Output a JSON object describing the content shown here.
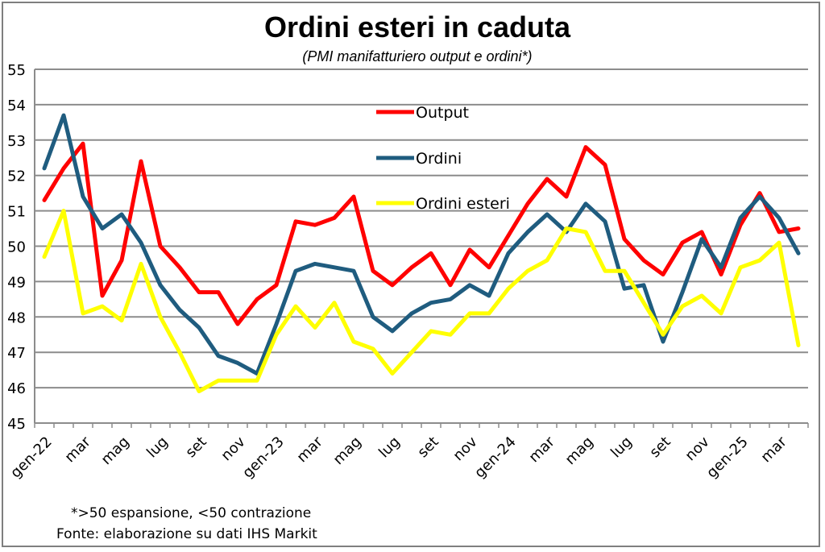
{
  "chart_data": {
    "type": "line",
    "title": "Ordini esteri in caduta",
    "subtitle": "(PMI manifatturiero output e ordini*)",
    "ylim": [
      45,
      55
    ],
    "yticks": [
      45,
      46,
      47,
      48,
      49,
      50,
      51,
      52,
      53,
      54,
      55
    ],
    "grid": true,
    "legend_position": "top-center",
    "x": [
      "gen-22",
      "feb-22",
      "mar",
      "apr-22",
      "mag",
      "giu-22",
      "lug",
      "ago-22",
      "set",
      "ott-22",
      "nov",
      "dic-22",
      "gen-23",
      "feb-23",
      "mar",
      "apr-23",
      "mag",
      "giu-23",
      "lug",
      "ago-23",
      "set",
      "ott-23",
      "nov",
      "dic-23",
      "gen-24",
      "feb-24",
      "mar",
      "apr-24",
      "mag",
      "giu-24",
      "lug",
      "ago-24",
      "set",
      "ott-24",
      "nov",
      "dic-24",
      "gen-25",
      "feb-25",
      "mar",
      "apr-25"
    ],
    "xtick_labels": [
      {
        "index": 0,
        "label": "gen-22"
      },
      {
        "index": 2,
        "label": "mar"
      },
      {
        "index": 4,
        "label": "mag"
      },
      {
        "index": 6,
        "label": "lug"
      },
      {
        "index": 8,
        "label": "set"
      },
      {
        "index": 10,
        "label": "nov"
      },
      {
        "index": 12,
        "label": "gen-23"
      },
      {
        "index": 14,
        "label": "mar"
      },
      {
        "index": 16,
        "label": "mag"
      },
      {
        "index": 18,
        "label": "lug"
      },
      {
        "index": 20,
        "label": "set"
      },
      {
        "index": 22,
        "label": "nov"
      },
      {
        "index": 24,
        "label": "gen-24"
      },
      {
        "index": 26,
        "label": "mar"
      },
      {
        "index": 28,
        "label": "mag"
      },
      {
        "index": 30,
        "label": "lug"
      },
      {
        "index": 32,
        "label": "set"
      },
      {
        "index": 34,
        "label": "nov"
      },
      {
        "index": 36,
        "label": "gen-25"
      },
      {
        "index": 38,
        "label": "mar"
      }
    ],
    "series": [
      {
        "name": "Output",
        "color": "#ff0000",
        "values": [
          51.3,
          52.2,
          52.9,
          48.6,
          49.6,
          52.4,
          50.0,
          49.4,
          48.7,
          48.7,
          47.8,
          48.5,
          48.9,
          50.7,
          50.6,
          50.8,
          51.4,
          49.3,
          48.9,
          49.4,
          49.8,
          48.9,
          49.9,
          49.4,
          50.3,
          51.2,
          51.9,
          51.4,
          52.8,
          52.3,
          50.2,
          49.6,
          49.2,
          50.1,
          50.4,
          49.2,
          50.6,
          51.5,
          50.4,
          50.5
        ]
      },
      {
        "name": "Ordini",
        "color": "#1f5c7f",
        "values": [
          52.2,
          53.7,
          51.4,
          50.5,
          50.9,
          50.1,
          48.9,
          48.2,
          47.7,
          46.9,
          46.7,
          46.4,
          47.8,
          49.3,
          49.5,
          49.4,
          49.3,
          48.0,
          47.6,
          48.1,
          48.4,
          48.5,
          48.9,
          48.6,
          49.8,
          50.4,
          50.9,
          50.4,
          51.2,
          50.7,
          48.8,
          48.9,
          47.3,
          48.7,
          50.2,
          49.4,
          50.8,
          51.4,
          50.8,
          49.8
        ]
      },
      {
        "name": "Ordini esteri",
        "color": "#ffff00",
        "values": [
          49.7,
          51.0,
          48.1,
          48.3,
          47.9,
          49.5,
          48.0,
          47.0,
          45.9,
          46.2,
          46.2,
          46.2,
          47.5,
          48.3,
          47.7,
          48.4,
          47.3,
          47.1,
          46.4,
          47.0,
          47.6,
          47.5,
          48.1,
          48.1,
          48.8,
          49.3,
          49.6,
          50.5,
          50.4,
          49.3,
          49.3,
          48.4,
          47.5,
          48.3,
          48.6,
          48.1,
          49.4,
          49.6,
          50.1,
          47.2
        ]
      }
    ],
    "notes": [
      "*>50 espansione, <50 contrazione",
      "Fonte: elaborazione su dati IHS Markit"
    ]
  }
}
